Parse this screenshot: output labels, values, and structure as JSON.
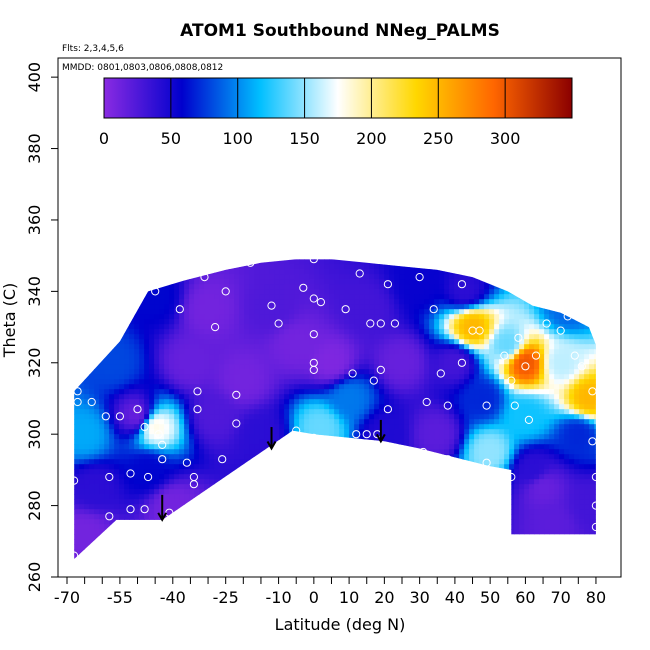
{
  "chart_data": {
    "type": "heatmap",
    "title": "ATOM1 Southbound NNeg_PALMS",
    "xlabel": "Latitude (deg N)",
    "ylabel": "Theta (C)",
    "notes": {
      "flights": "Flts: 2,3,4,5,6",
      "dates": "MMDD: 0801,0803,0806,0808,0812"
    },
    "xlim": [
      -70,
      82
    ],
    "ylim": [
      260,
      402
    ],
    "x_tick_labels": [
      "-70",
      "-55",
      "-40",
      "-25",
      "-10",
      "0",
      "10",
      "20",
      "30",
      "40",
      "50",
      "60",
      "70",
      "80"
    ],
    "y_tick_labels": [
      "260",
      "280",
      "300",
      "320",
      "340",
      "360",
      "380",
      "400"
    ],
    "colorbar": {
      "min": 0,
      "max": 350,
      "tick_labels": [
        "0",
        "50",
        "100",
        "150",
        "200",
        "250",
        "300"
      ],
      "colors": [
        "#8a2be2",
        "#0000cd",
        "#00bfff",
        "#ffffff",
        "#ffd700",
        "#ff6600",
        "#8b0000"
      ]
    },
    "field_outline": [
      [
        -68,
        265
      ],
      [
        -68,
        312
      ],
      [
        -55,
        326
      ],
      [
        -47,
        340
      ],
      [
        -37,
        343
      ],
      [
        -25,
        346
      ],
      [
        -15,
        348
      ],
      [
        -5,
        349
      ],
      [
        5,
        349
      ],
      [
        15,
        348
      ],
      [
        25,
        347
      ],
      [
        35,
        346
      ],
      [
        45,
        344
      ],
      [
        55,
        340
      ],
      [
        62,
        336
      ],
      [
        70,
        334
      ],
      [
        78,
        330
      ],
      [
        80,
        325
      ],
      [
        80,
        272
      ],
      [
        56,
        272
      ],
      [
        56,
        290
      ],
      [
        50,
        291
      ],
      [
        30,
        296
      ],
      [
        20,
        298
      ],
      [
        0,
        300
      ],
      [
        -6,
        301
      ],
      [
        -43,
        276
      ],
      [
        -56,
        276
      ],
      [
        -68,
        265
      ]
    ],
    "field_values": [
      {
        "x": -65,
        "y": 300,
        "v": 110
      },
      {
        "x": -62,
        "y": 285,
        "v": 40
      },
      {
        "x": -65,
        "y": 272,
        "v": 10
      },
      {
        "x": -57,
        "y": 320,
        "v": 80
      },
      {
        "x": -50,
        "y": 305,
        "v": 15
      },
      {
        "x": -47,
        "y": 290,
        "v": 60
      },
      {
        "x": -45,
        "y": 302,
        "v": 180
      },
      {
        "x": -45,
        "y": 338,
        "v": 60
      },
      {
        "x": -40,
        "y": 280,
        "v": 10
      },
      {
        "x": -35,
        "y": 320,
        "v": 15
      },
      {
        "x": -28,
        "y": 305,
        "v": 25
      },
      {
        "x": -30,
        "y": 335,
        "v": 10
      },
      {
        "x": -20,
        "y": 315,
        "v": 10
      },
      {
        "x": -15,
        "y": 300,
        "v": 40
      },
      {
        "x": -12,
        "y": 335,
        "v": 25
      },
      {
        "x": -5,
        "y": 325,
        "v": 10
      },
      {
        "x": 2,
        "y": 302,
        "v": 140
      },
      {
        "x": 5,
        "y": 320,
        "v": 5
      },
      {
        "x": 10,
        "y": 310,
        "v": 95
      },
      {
        "x": 15,
        "y": 335,
        "v": 30
      },
      {
        "x": 20,
        "y": 300,
        "v": 45
      },
      {
        "x": 25,
        "y": 320,
        "v": 15
      },
      {
        "x": 30,
        "y": 342,
        "v": 55
      },
      {
        "x": 35,
        "y": 300,
        "v": 20
      },
      {
        "x": 40,
        "y": 320,
        "v": 30
      },
      {
        "x": 45,
        "y": 330,
        "v": 250
      },
      {
        "x": 43,
        "y": 340,
        "v": 40
      },
      {
        "x": 48,
        "y": 310,
        "v": 70
      },
      {
        "x": 50,
        "y": 295,
        "v": 150
      },
      {
        "x": 55,
        "y": 325,
        "v": 140
      },
      {
        "x": 60,
        "y": 320,
        "v": 300
      },
      {
        "x": 60,
        "y": 305,
        "v": 120
      },
      {
        "x": 62,
        "y": 290,
        "v": 40
      },
      {
        "x": 65,
        "y": 285,
        "v": 15
      },
      {
        "x": 70,
        "y": 320,
        "v": 160
      },
      {
        "x": 72,
        "y": 335,
        "v": 90
      },
      {
        "x": 75,
        "y": 300,
        "v": 70
      },
      {
        "x": 78,
        "y": 310,
        "v": 250
      },
      {
        "x": 78,
        "y": 280,
        "v": 30
      },
      {
        "x": 68,
        "y": 275,
        "v": 20
      }
    ],
    "observation_points": [
      [
        -68,
        266
      ],
      [
        -68,
        287
      ],
      [
        -67,
        312
      ],
      [
        -67,
        309
      ],
      [
        -63,
        309
      ],
      [
        -59,
        305
      ],
      [
        -58,
        277
      ],
      [
        -58,
        288
      ],
      [
        -55,
        305
      ],
      [
        -52,
        289
      ],
      [
        -52,
        279
      ],
      [
        -50,
        307
      ],
      [
        -48,
        302
      ],
      [
        -48,
        279
      ],
      [
        -47,
        288
      ],
      [
        -45,
        340
      ],
      [
        -44,
        300
      ],
      [
        -43,
        297
      ],
      [
        -43,
        293
      ],
      [
        -41,
        278
      ],
      [
        -38,
        335
      ],
      [
        -36,
        292
      ],
      [
        -34,
        286
      ],
      [
        -34,
        288
      ],
      [
        -33,
        307
      ],
      [
        -33,
        312
      ],
      [
        -31,
        344
      ],
      [
        -28,
        330
      ],
      [
        -26,
        293
      ],
      [
        -25,
        340
      ],
      [
        -22,
        303
      ],
      [
        -22,
        311
      ],
      [
        -18,
        348
      ],
      [
        -12,
        336
      ],
      [
        -10,
        331
      ],
      [
        -5,
        301
      ],
      [
        -3,
        341
      ],
      [
        0,
        349
      ],
      [
        0,
        338
      ],
      [
        0,
        328
      ],
      [
        0,
        320
      ],
      [
        0,
        318
      ],
      [
        0,
        299
      ],
      [
        2,
        337
      ],
      [
        9,
        335
      ],
      [
        11,
        317
      ],
      [
        12,
        300
      ],
      [
        13,
        345
      ],
      [
        15,
        300
      ],
      [
        16,
        331
      ],
      [
        17,
        315
      ],
      [
        18,
        300
      ],
      [
        19,
        318
      ],
      [
        19,
        331
      ],
      [
        21,
        342
      ],
      [
        21,
        307
      ],
      [
        23,
        331
      ],
      [
        30,
        344
      ],
      [
        31,
        295
      ],
      [
        32,
        309
      ],
      [
        34,
        335
      ],
      [
        36,
        317
      ],
      [
        36,
        291
      ],
      [
        38,
        293
      ],
      [
        38,
        308
      ],
      [
        42,
        342
      ],
      [
        42,
        320
      ],
      [
        45,
        329
      ],
      [
        46,
        289
      ],
      [
        47,
        329
      ],
      [
        49,
        292
      ],
      [
        49,
        308
      ],
      [
        54,
        322
      ],
      [
        56,
        315
      ],
      [
        56,
        288
      ],
      [
        57,
        308
      ],
      [
        58,
        327
      ],
      [
        60,
        319
      ],
      [
        61,
        304
      ],
      [
        63,
        322
      ],
      [
        66,
        331
      ],
      [
        70,
        329
      ],
      [
        72,
        333
      ],
      [
        74,
        322
      ],
      [
        76,
        319
      ],
      [
        79,
        312
      ],
      [
        79,
        298
      ],
      [
        80,
        288
      ],
      [
        80,
        280
      ],
      [
        80,
        274
      ]
    ],
    "arrows": [
      {
        "x": -43,
        "y_top": 283,
        "y_bottom": 276
      },
      {
        "x": -12,
        "y_top": 302,
        "y_bottom": 296
      },
      {
        "x": 19,
        "y_top": 304,
        "y_bottom": 298
      }
    ]
  }
}
